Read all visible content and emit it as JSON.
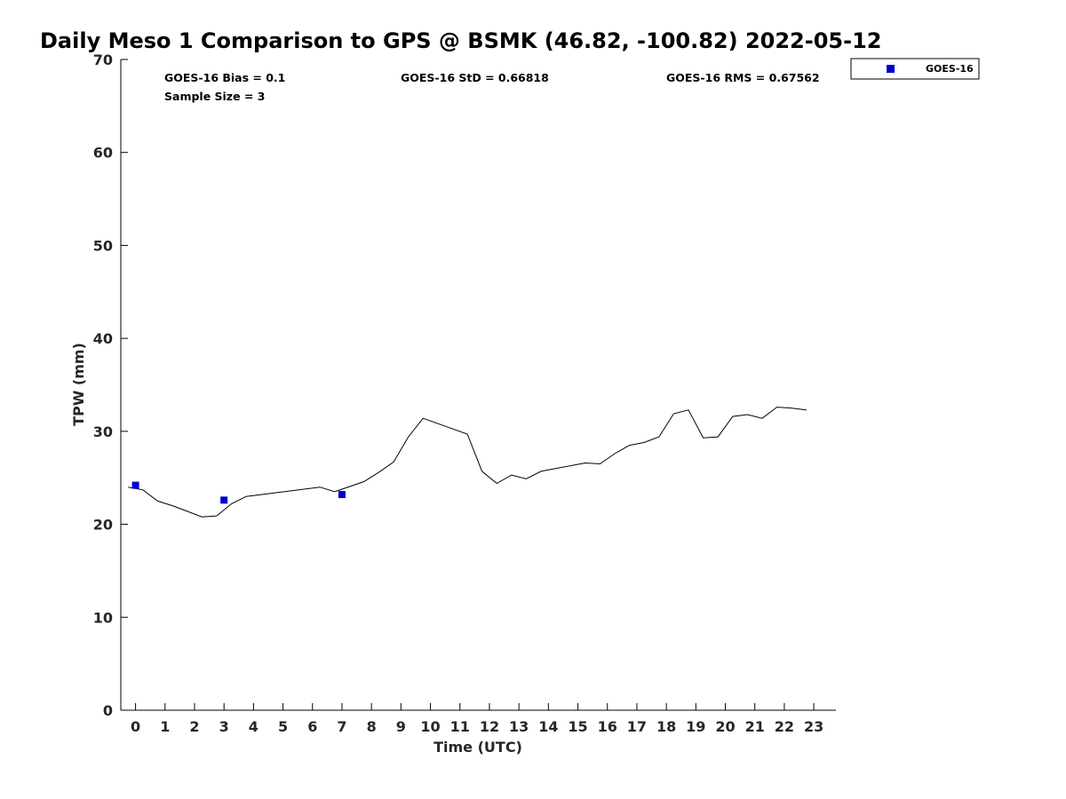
{
  "chart_data": {
    "type": "line",
    "title": "Daily Meso 1 Comparison to GPS @ BSMK (46.82, -100.82) 2022-05-12",
    "xlabel": "Time (UTC)",
    "ylabel": "TPW (mm)",
    "xlim": [
      -0.5,
      23.75
    ],
    "ylim": [
      0,
      70
    ],
    "x_ticks": [
      0,
      1,
      2,
      3,
      4,
      5,
      6,
      7,
      8,
      9,
      10,
      11,
      12,
      13,
      14,
      15,
      16,
      17,
      18,
      19,
      20,
      21,
      22,
      23
    ],
    "y_ticks": [
      0,
      10,
      20,
      30,
      40,
      50,
      60,
      70
    ],
    "grid": false,
    "legend": {
      "position": "top-right",
      "entries": [
        "GOES-16"
      ]
    },
    "stats": {
      "bias": "GOES-16 Bias = 0.1",
      "std": "GOES-16 StD = 0.66818",
      "rms": "GOES-16 RMS = 0.67562",
      "sample": "Sample Size = 3"
    },
    "series": [
      {
        "kind": "line",
        "color": "#000000",
        "points": [
          [
            -0.25,
            24.0
          ],
          [
            0.25,
            23.7
          ],
          [
            0.75,
            22.5
          ],
          [
            1.25,
            22.0
          ],
          [
            1.75,
            21.4
          ],
          [
            2.25,
            20.8
          ],
          [
            2.75,
            20.9
          ],
          [
            3.25,
            22.2
          ],
          [
            3.75,
            23.0
          ],
          [
            6.25,
            24.0
          ],
          [
            6.75,
            23.5
          ],
          [
            7.75,
            24.6
          ],
          [
            8.25,
            25.6
          ],
          [
            8.75,
            26.7
          ],
          [
            9.25,
            29.4
          ],
          [
            9.75,
            31.4
          ],
          [
            11.25,
            29.7
          ],
          [
            11.75,
            25.7
          ],
          [
            12.25,
            24.4
          ],
          [
            12.75,
            25.3
          ],
          [
            13.25,
            24.9
          ],
          [
            13.75,
            25.7
          ],
          [
            15.25,
            26.6
          ],
          [
            15.75,
            26.5
          ],
          [
            16.25,
            27.6
          ],
          [
            16.75,
            28.5
          ],
          [
            17.25,
            28.8
          ],
          [
            17.75,
            29.4
          ],
          [
            18.25,
            31.9
          ],
          [
            18.75,
            32.3
          ],
          [
            19.25,
            29.3
          ],
          [
            19.75,
            29.4
          ],
          [
            20.25,
            31.6
          ],
          [
            20.75,
            31.8
          ],
          [
            21.25,
            31.4
          ],
          [
            21.75,
            32.6
          ],
          [
            22.25,
            32.5
          ],
          [
            22.75,
            32.3
          ]
        ]
      },
      {
        "name": "GOES-16",
        "kind": "scatter",
        "color": "#0000cc",
        "points": [
          [
            0,
            24.2
          ],
          [
            3,
            22.6
          ],
          [
            7,
            23.2
          ]
        ]
      }
    ]
  }
}
